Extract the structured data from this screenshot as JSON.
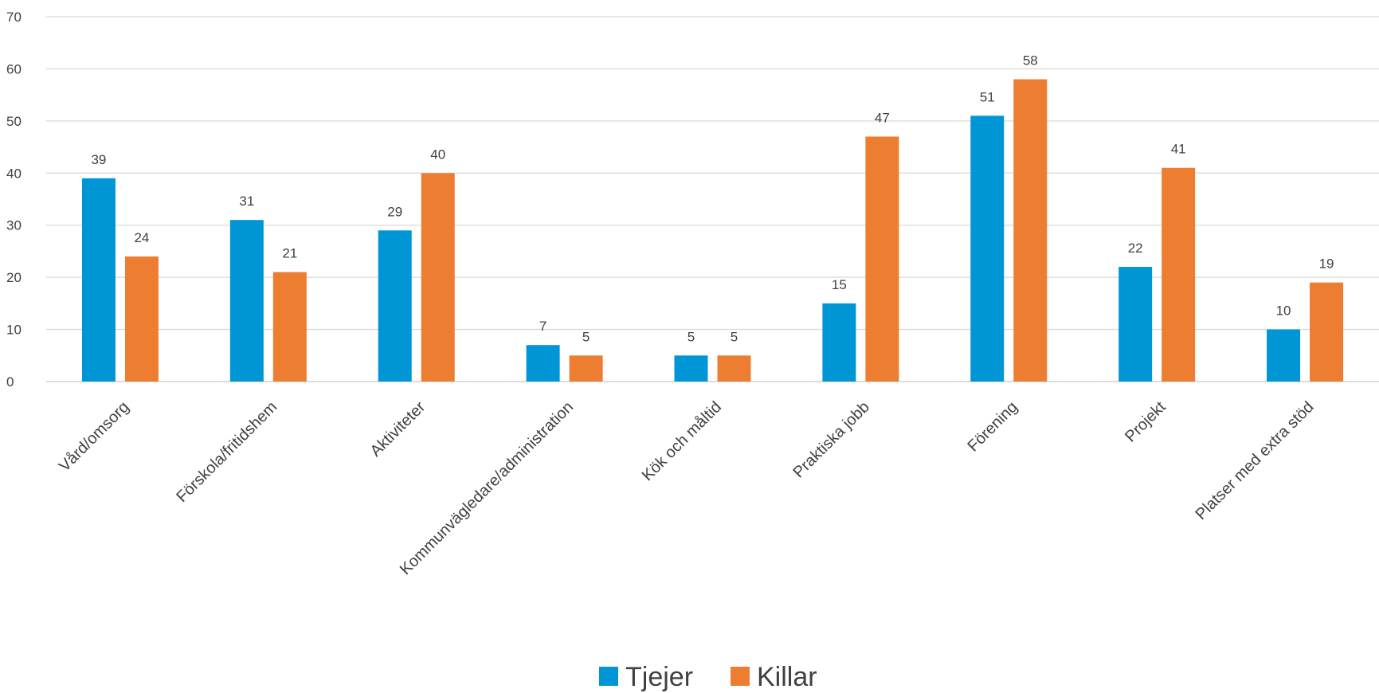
{
  "chart_data": {
    "type": "bar",
    "categories": [
      "Vård/omsorg",
      "Förskola/fritidshem",
      "Aktiviteter",
      "Kommunvägledare/administration",
      "Kök och måltid",
      "Praktiska jobb",
      "Förening",
      "Projekt",
      "Platser med extra stöd"
    ],
    "series": [
      {
        "name": "Tjejer",
        "color": "#0096D6",
        "values": [
          39,
          31,
          29,
          7,
          5,
          15,
          51,
          22,
          10
        ]
      },
      {
        "name": "Killar",
        "color": "#ED7D31",
        "values": [
          24,
          21,
          40,
          5,
          5,
          47,
          58,
          41,
          19
        ]
      }
    ],
    "y_ticks": [
      "0",
      "10",
      "20",
      "30",
      "40",
      "50",
      "60",
      "70"
    ],
    "ylim": [
      0,
      70
    ],
    "grid": true,
    "legend_position": "bottom-center",
    "title": "",
    "xlabel": "",
    "ylabel": ""
  }
}
